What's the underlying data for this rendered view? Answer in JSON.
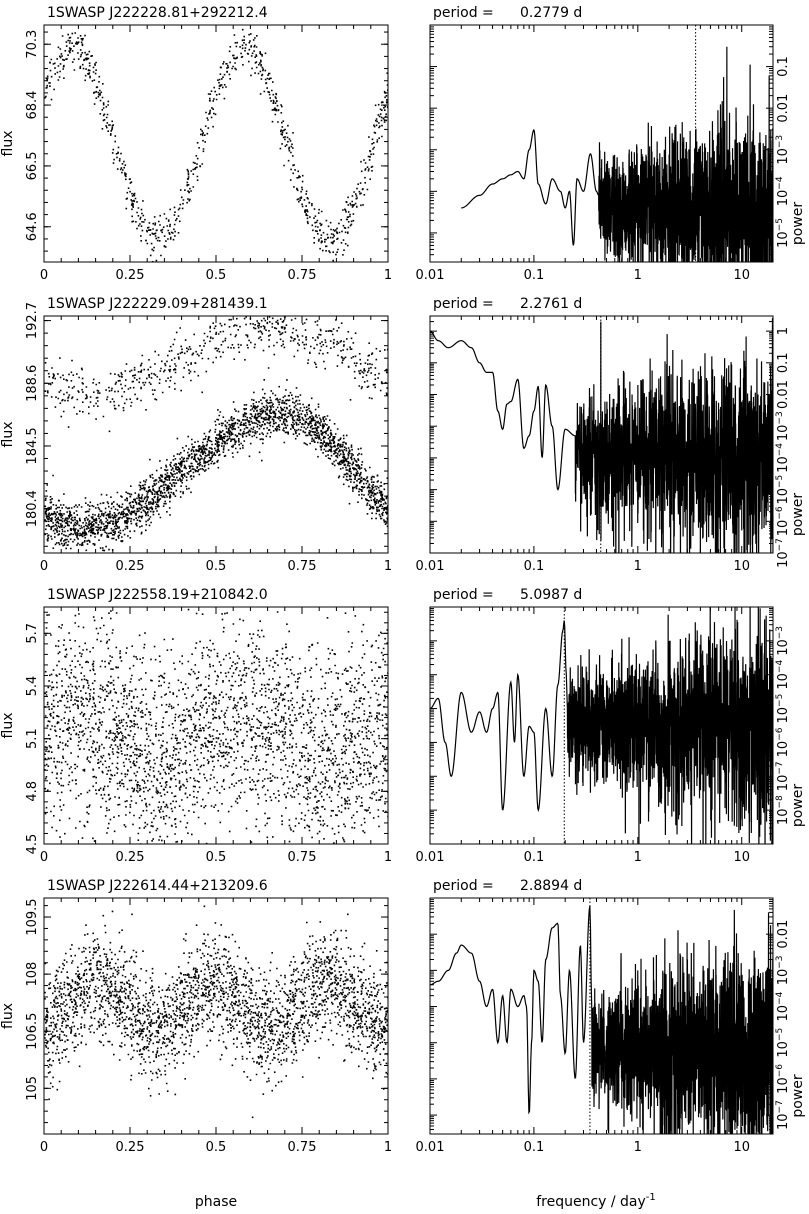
{
  "figure": {
    "xlabel_left": "phase",
    "xlabel_right": "frequency / day",
    "xlabel_right_sup": "-1"
  },
  "chart_data": [
    {
      "type": "scatter",
      "panel": "lightcurve",
      "star": "1SWASP  J222228.81+292212.4",
      "xlabel": "phase",
      "ylabel": "flux",
      "xlim": [
        0,
        1
      ],
      "ylim": [
        63.5,
        70.9
      ],
      "xticks": [
        "0",
        "0.25",
        "0.5",
        "0.75",
        "1"
      ],
      "xtick_values": [
        0,
        0.25,
        0.5,
        0.75,
        1
      ],
      "yticks": [
        "64.6",
        "66.5",
        "68.4",
        "70.3"
      ],
      "ytick_values": [
        64.6,
        66.5,
        68.4,
        70.3
      ],
      "model": {
        "shape": "sinusoid",
        "cycles": 2,
        "mean": 67.2,
        "amplitude": 3.0,
        "max_phase": 0.08,
        "scatter": 0.35,
        "n_points": 900
      }
    },
    {
      "type": "line",
      "panel": "periodogram",
      "period_label": "period =",
      "period_value": "0.2779  d",
      "xlabel": "frequency / day-1",
      "ylabel": "power",
      "xscale": "log",
      "yscale": "log",
      "xlim": [
        0.01,
        20
      ],
      "ylim": [
        2e-06,
        1
      ],
      "xticks": [
        "0.01",
        "0.1",
        "1",
        "10"
      ],
      "xtick_values": [
        0.01,
        0.1,
        1,
        10
      ],
      "yticks": [
        "10-5",
        "10-4",
        "10-3",
        "0.01",
        "0.1"
      ],
      "ytick_values": [
        1e-05,
        0.0001,
        0.001,
        0.01,
        0.1
      ],
      "marker_frequency": 3.6,
      "model": {
        "f_start": 0.02,
        "f_split": 0.42,
        "low": [
          [
            0.02,
            4e-05
          ],
          [
            0.03,
            8e-05
          ],
          [
            0.04,
            0.00015
          ],
          [
            0.05,
            0.0002
          ],
          [
            0.06,
            0.00025
          ],
          [
            0.07,
            0.0003
          ],
          [
            0.08,
            0.0002
          ],
          [
            0.09,
            0.001
          ],
          [
            0.1,
            0.003
          ],
          [
            0.11,
            0.00015
          ],
          [
            0.13,
            5e-05
          ],
          [
            0.15,
            0.0002
          ],
          [
            0.18,
            0.0001
          ],
          [
            0.2,
            4e-05
          ],
          [
            0.22,
            0.0001
          ],
          [
            0.24,
            5e-06
          ],
          [
            0.26,
            0.0002
          ],
          [
            0.3,
            0.0001
          ],
          [
            0.35,
            0.0008
          ],
          [
            0.4,
            0.0001
          ],
          [
            0.42,
            8e-05
          ]
        ],
        "noise_level": 6e-05,
        "noise_spread": 1.8,
        "peaks": [
          [
            7.2,
            0.3
          ],
          [
            3.6,
            0.003
          ],
          [
            1.8,
            0.001
          ]
        ]
      }
    },
    {
      "type": "scatter",
      "panel": "lightcurve",
      "star": "1SWASP  J222229.09+281439.1",
      "xlabel": "phase",
      "ylabel": "flux",
      "xlim": [
        0,
        1
      ],
      "ylim": [
        177.5,
        193.0
      ],
      "xticks": [
        "0",
        "0.25",
        "0.5",
        "0.75",
        "1"
      ],
      "xtick_values": [
        0,
        0.25,
        0.5,
        0.75,
        1
      ],
      "yticks": [
        "180.4",
        "184.5",
        "188.6",
        "192.7"
      ],
      "ytick_values": [
        180.4,
        184.5,
        188.6,
        192.7
      ],
      "model": {
        "shape": "asymmetric",
        "min_phase": 0.1,
        "max_phase": 0.7,
        "low": 179.2,
        "high": 186.6,
        "scatter": 0.75,
        "n_points": 2500,
        "upper_band": {
          "min_phase": 0.15,
          "max_phase": 0.65,
          "low": 187.8,
          "high": 192.5,
          "scatter": 0.9,
          "n_points": 650
        }
      }
    },
    {
      "type": "line",
      "panel": "periodogram",
      "period_label": "period =",
      "period_value": "2.2761  d",
      "xlabel": "frequency / day-1",
      "ylabel": "power",
      "xscale": "log",
      "yscale": "log",
      "xlim": [
        0.01,
        20
      ],
      "ylim": [
        1e-07,
        3
      ],
      "xticks": [
        "0.01",
        "0.1",
        "1",
        "10"
      ],
      "xtick_values": [
        0.01,
        0.1,
        1,
        10
      ],
      "yticks": [
        "10-7",
        "10-6",
        "10-5",
        "10-4",
        "10-3",
        "0.01",
        "0.1",
        "1"
      ],
      "ytick_values": [
        1e-07,
        1e-06,
        1e-05,
        0.0001,
        0.001,
        0.01,
        0.1,
        1
      ],
      "marker_frequency": 0.44,
      "model": {
        "f_start": 0.01,
        "f_split": 0.25,
        "low": [
          [
            0.01,
            1.0
          ],
          [
            0.012,
            0.5
          ],
          [
            0.015,
            0.3
          ],
          [
            0.02,
            0.5
          ],
          [
            0.025,
            0.3
          ],
          [
            0.03,
            0.1
          ],
          [
            0.035,
            0.05
          ],
          [
            0.04,
            0.05
          ],
          [
            0.045,
            0.003
          ],
          [
            0.05,
            0.0008
          ],
          [
            0.055,
            0.005
          ],
          [
            0.06,
            0.006
          ],
          [
            0.07,
            0.03
          ],
          [
            0.08,
            0.0002
          ],
          [
            0.09,
            0.0005
          ],
          [
            0.1,
            0.003
          ],
          [
            0.11,
            0.018
          ],
          [
            0.12,
            0.0001
          ],
          [
            0.13,
            0.02
          ],
          [
            0.15,
            0.001
          ],
          [
            0.17,
            1e-05
          ],
          [
            0.2,
            0.0008
          ],
          [
            0.25,
            0.0005
          ]
        ],
        "noise_level": 0.0002,
        "noise_spread": 2.5,
        "peaks": [
          [
            0.44,
            2.0
          ],
          [
            1.0,
            0.02
          ],
          [
            0.88,
            0.01
          ]
        ]
      }
    },
    {
      "type": "scatter",
      "panel": "lightcurve",
      "star": "1SWASP  J222558.19+210842.0",
      "xlabel": "phase",
      "ylabel": "flux",
      "xlim": [
        0,
        1
      ],
      "ylim": [
        4.5,
        5.85
      ],
      "xticks": [
        "0",
        "0.25",
        "0.5",
        "0.75",
        "1"
      ],
      "xtick_values": [
        0,
        0.25,
        0.5,
        0.75,
        1
      ],
      "yticks": [
        "4.5",
        "4.8",
        "5.1",
        "5.4",
        "5.7"
      ],
      "ytick_values": [
        4.5,
        4.8,
        5.1,
        5.4,
        5.7
      ],
      "model": {
        "shape": "sinusoid",
        "cycles": 2,
        "mean": 5.12,
        "amplitude": 0.12,
        "max_phase": 0.08,
        "scatter": 0.3,
        "n_points": 2800
      }
    },
    {
      "type": "line",
      "panel": "periodogram",
      "period_label": "period =",
      "period_value": "5.0987  d",
      "xlabel": "frequency / day-1",
      "ylabel": "power",
      "xscale": "log",
      "yscale": "log",
      "xlim": [
        0.01,
        20
      ],
      "ylim": [
        1e-09,
        0.01
      ],
      "xticks": [
        "0.01",
        "0.1",
        "1",
        "10"
      ],
      "xtick_values": [
        0.01,
        0.1,
        1,
        10
      ],
      "yticks": [
        "10-8",
        "10-7",
        "10-6",
        "10-5",
        "10-4",
        "10-3"
      ],
      "ytick_values": [
        1e-08,
        1e-07,
        1e-06,
        1e-05,
        0.0001,
        0.001
      ],
      "marker_frequency": 0.196,
      "model": {
        "f_start": 0.01,
        "f_split": 0.21,
        "low": [
          [
            0.01,
            1e-05
          ],
          [
            0.012,
            2e-05
          ],
          [
            0.014,
            1e-06
          ],
          [
            0.016,
            1e-07
          ],
          [
            0.02,
            3e-05
          ],
          [
            0.025,
            2e-06
          ],
          [
            0.03,
            8e-06
          ],
          [
            0.035,
            2e-06
          ],
          [
            0.04,
            1e-05
          ],
          [
            0.045,
            3e-05
          ],
          [
            0.05,
            1e-08
          ],
          [
            0.06,
            6e-05
          ],
          [
            0.065,
            1e-06
          ],
          [
            0.07,
            0.0001
          ],
          [
            0.08,
            1e-07
          ],
          [
            0.09,
            3e-06
          ],
          [
            0.1,
            2e-06
          ],
          [
            0.11,
            1e-08
          ],
          [
            0.13,
            1e-05
          ],
          [
            0.15,
            1e-07
          ],
          [
            0.17,
            5e-05
          ],
          [
            0.19,
            0.002
          ],
          [
            0.196,
            0.004
          ],
          [
            0.205,
            0.0001
          ],
          [
            0.21,
            1e-05
          ]
        ],
        "noise_level": 5e-06,
        "noise_spread": 2.2,
        "peaks": [
          [
            0.4,
            0.0002
          ],
          [
            2.0,
            0.001
          ],
          [
            5.0,
            0.0003
          ]
        ]
      }
    },
    {
      "type": "scatter",
      "panel": "lightcurve",
      "star": "1SWASP  J222614.44+213209.6",
      "xlabel": "phase",
      "ylabel": "flux",
      "xlim": [
        0,
        1
      ],
      "ylim": [
        103.8,
        110.0
      ],
      "xticks": [
        "0",
        "0.25",
        "0.5",
        "0.75",
        "1"
      ],
      "xtick_values": [
        0,
        0.25,
        0.5,
        0.75,
        1
      ],
      "yticks": [
        "105",
        "106.5",
        "108",
        "109.5"
      ],
      "ytick_values": [
        105,
        106.5,
        108,
        109.5
      ],
      "model": {
        "shape": "sinusoid",
        "cycles": 3,
        "mean": 107.2,
        "amplitude": 0.6,
        "max_phase": 0.16,
        "scatter": 0.7,
        "n_points": 2800
      }
    },
    {
      "type": "line",
      "panel": "periodogram",
      "period_label": "period =",
      "period_value": "2.8894  d",
      "xlabel": "frequency / day-1",
      "ylabel": "power",
      "xscale": "log",
      "yscale": "log",
      "xlim": [
        0.01,
        20
      ],
      "ylim": [
        3e-08,
        0.1
      ],
      "xticks": [
        "0.01",
        "0.1",
        "1",
        "10"
      ],
      "xtick_values": [
        0.01,
        0.1,
        1,
        10
      ],
      "yticks": [
        "10-7",
        "10-6",
        "10-5",
        "10-4",
        "10-3",
        "0.01"
      ],
      "ytick_values": [
        1e-07,
        1e-06,
        1e-05,
        0.0001,
        0.001,
        0.01
      ],
      "marker_frequency": 0.346,
      "model": {
        "f_start": 0.01,
        "f_split": 0.36,
        "low": [
          [
            0.01,
            0.0004
          ],
          [
            0.012,
            0.0005
          ],
          [
            0.015,
            0.001
          ],
          [
            0.018,
            0.003
          ],
          [
            0.02,
            0.005
          ],
          [
            0.025,
            0.003
          ],
          [
            0.03,
            0.0005
          ],
          [
            0.035,
            0.0001
          ],
          [
            0.04,
            0.0003
          ],
          [
            0.045,
            1e-05
          ],
          [
            0.05,
            0.0002
          ],
          [
            0.055,
            1e-05
          ],
          [
            0.06,
            0.0003
          ],
          [
            0.07,
            0.0001
          ],
          [
            0.08,
            0.0002
          ],
          [
            0.085,
            0.0001
          ],
          [
            0.09,
            1e-07
          ],
          [
            0.095,
            1e-05
          ],
          [
            0.1,
            0.001
          ],
          [
            0.11,
            0.0005
          ],
          [
            0.12,
            1e-05
          ],
          [
            0.13,
            0.002
          ],
          [
            0.15,
            0.015
          ],
          [
            0.17,
            0.02
          ],
          [
            0.18,
            0.0002
          ],
          [
            0.2,
            5e-06
          ],
          [
            0.22,
            0.001
          ],
          [
            0.25,
            1e-06
          ],
          [
            0.28,
            0.005
          ],
          [
            0.3,
            1e-05
          ],
          [
            0.346,
            0.06
          ],
          [
            0.36,
            0.0001
          ]
        ],
        "noise_level": 1e-05,
        "noise_spread": 2.2,
        "peaks": [
          [
            0.69,
            0.003
          ],
          [
            1.0,
            0.001
          ],
          [
            3.0,
            0.002
          ]
        ]
      }
    }
  ]
}
